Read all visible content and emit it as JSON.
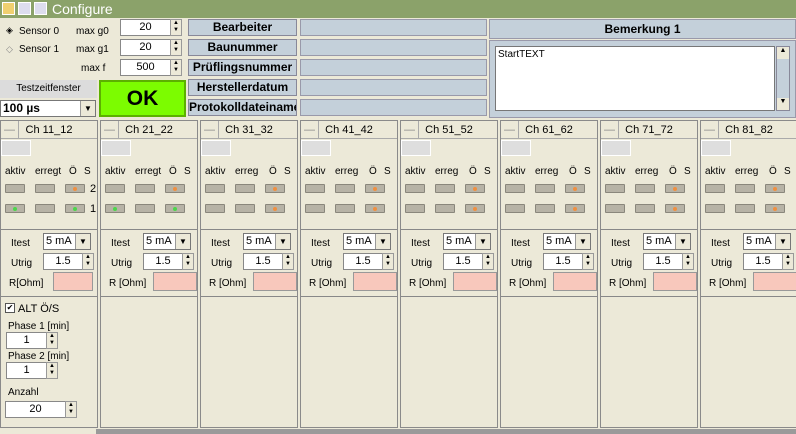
{
  "window": {
    "title": "Configure"
  },
  "sensors": [
    {
      "label": "Sensor 0",
      "selected": true
    },
    {
      "label": "Sensor 1",
      "selected": false
    }
  ],
  "limits": [
    {
      "label": "max g0",
      "value": "20"
    },
    {
      "label": "max g1",
      "value": "20"
    },
    {
      "label": "max f",
      "value": "500"
    }
  ],
  "testzeit": {
    "label": "Testzeitfenster",
    "value": "100 µs"
  },
  "ok_label": "OK",
  "fields": [
    "Bearbeiter",
    "Baunummer",
    "Prüflingsnummer",
    "Herstellerdatum",
    "Protokolldateiname"
  ],
  "remark": {
    "title": "Bemerkung 1",
    "text": "StartTEXT"
  },
  "colors": {
    "titlebar": "#8ba26a",
    "ok": "#7cfc00",
    "field": "#c4d0da",
    "r_box": "#f8c8bc",
    "led_green": "#4cd64c",
    "led_orange": "#f09040"
  },
  "channels": [
    {
      "name": "Ch 11_12",
      "h": [
        "aktiv",
        "erregt",
        "Ö",
        "S"
      ],
      "row1": [
        "off",
        "off",
        "orange"
      ],
      "row2": [
        "green",
        "off",
        "green"
      ],
      "rows": [
        "2",
        "1"
      ],
      "itest": "5 mA",
      "utrig": "1.5",
      "r_label": "R[Ohm]",
      "itest_label": "Itest",
      "utrig_label": "Utrig"
    },
    {
      "name": "Ch 21_22",
      "h": [
        "aktiv",
        "erregt",
        "Ö",
        "S"
      ],
      "row1": [
        "off",
        "off",
        "orange"
      ],
      "row2": [
        "green",
        "off",
        "green"
      ],
      "itest": "5 mA",
      "utrig": "1.5",
      "r_label": "R [Ohm]",
      "itest_label": "Itest",
      "utrig_label": "Utrig"
    },
    {
      "name": "Ch 31_32",
      "h": [
        "aktiv",
        "erreg",
        "Ö",
        "S"
      ],
      "row1": [
        "off",
        "off",
        "orange"
      ],
      "row2": [
        "off",
        "off",
        "orange"
      ],
      "itest": "5 mA",
      "utrig": "1.5",
      "r_label": "R [Ohm]",
      "itest_label": "Itest",
      "utrig_label": "Utrig"
    },
    {
      "name": "Ch 41_42",
      "h": [
        "aktiv",
        "erreg",
        "Ö",
        "S"
      ],
      "row1": [
        "off",
        "off",
        "orange"
      ],
      "row2": [
        "off",
        "off",
        "orange"
      ],
      "itest": "5 mA",
      "utrig": "1.5",
      "r_label": "R [Ohm]",
      "itest_label": "Itest",
      "utrig_label": "Utrig"
    },
    {
      "name": "Ch 51_52",
      "h": [
        "aktiv",
        "erreg",
        "Ö",
        "S"
      ],
      "row1": [
        "off",
        "off",
        "orange"
      ],
      "row2": [
        "off",
        "off",
        "orange"
      ],
      "itest": "5 mA",
      "utrig": "1.5",
      "r_label": "R [Ohm]",
      "itest_label": "Itest",
      "utrig_label": "Utrig"
    },
    {
      "name": "Ch 61_62",
      "h": [
        "aktiv",
        "erreg",
        "Ö",
        "S"
      ],
      "row1": [
        "off",
        "off",
        "orange"
      ],
      "row2": [
        "off",
        "off",
        "orange"
      ],
      "itest": "5 mA",
      "utrig": "1.5",
      "r_label": "R [Ohm]",
      "itest_label": "Itest",
      "utrig_label": "Utrig"
    },
    {
      "name": "Ch 71_72",
      "h": [
        "aktiv",
        "erreg",
        "Ö",
        "S"
      ],
      "row1": [
        "off",
        "off",
        "orange"
      ],
      "row2": [
        "off",
        "off",
        "orange"
      ],
      "itest": "5 mA",
      "utrig": "1.5",
      "r_label": "R [Ohm]",
      "itest_label": "Itest",
      "utrig_label": "Utrig"
    },
    {
      "name": "Ch 81_82",
      "h": [
        "aktiv",
        "erreg",
        "Ö",
        "S"
      ],
      "row1": [
        "off",
        "off",
        "orange"
      ],
      "row2": [
        "off",
        "off",
        "orange"
      ],
      "itest": "5 mA",
      "utrig": "1.5",
      "r_label": "R [Ohm]",
      "itest_label": "Itest",
      "utrig_label": "Utrig"
    }
  ],
  "alt": {
    "label": "ALT Ö/S",
    "checked": true,
    "phase1_label": "Phase 1 [min]",
    "phase1": "1",
    "phase2_label": "Phase 2 [min]",
    "phase2": "1",
    "anzahl_label": "Anzahl",
    "anzahl": "20"
  }
}
